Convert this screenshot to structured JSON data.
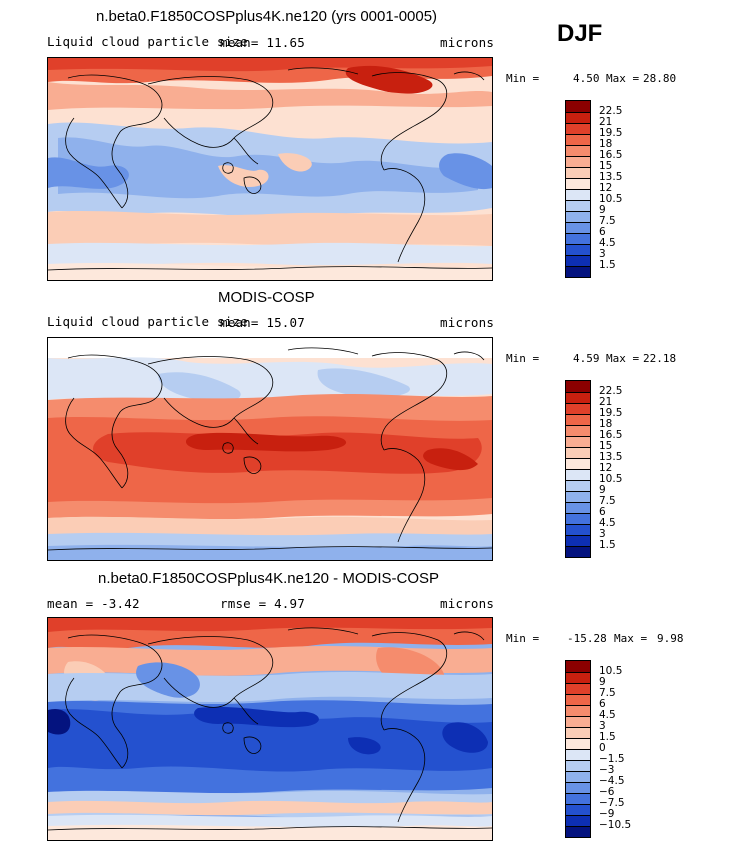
{
  "season": "DJF",
  "panels": [
    {
      "title": "n.beta0.F1850COSPplus4K.ne120 (yrs 0001-0005)",
      "variable": "Liquid cloud particle size",
      "stat": "mean=   11.65",
      "units": "microns",
      "min_label": "Min =",
      "min_value": "4.50",
      "max_label": "Max =",
      "max_value": "28.80",
      "colorbar_labels": [
        "22.5",
        "21",
        "19.5",
        "18",
        "16.5",
        "15",
        "13.5",
        "12",
        "10.5",
        "9",
        "7.5",
        "6",
        "4.5",
        "3",
        "1.5"
      ],
      "colors": [
        "#8b0000",
        "#c8200f",
        "#e0402a",
        "#ee6648",
        "#f58c6d",
        "#f9ad92",
        "#fbcdb6",
        "#fde8dc",
        "#dce6f6",
        "#b6cdf1",
        "#8fb1ec",
        "#6892e6",
        "#4372de",
        "#2451cf",
        "#0d2fb4",
        "#04137f"
      ]
    },
    {
      "title": "MODIS-COSP",
      "variable": "Liquid cloud particle size",
      "stat": "mean=   15.07",
      "units": "microns",
      "min_label": "Min =",
      "min_value": "4.59",
      "max_label": "Max =",
      "max_value": "22.18",
      "colorbar_labels": [
        "22.5",
        "21",
        "19.5",
        "18",
        "16.5",
        "15",
        "13.5",
        "12",
        "10.5",
        "9",
        "7.5",
        "6",
        "4.5",
        "3",
        "1.5"
      ],
      "colors": [
        "#8b0000",
        "#c8200f",
        "#e0402a",
        "#ee6648",
        "#f58c6d",
        "#f9ad92",
        "#fbcdb6",
        "#fde8dc",
        "#dce6f6",
        "#b6cdf1",
        "#8fb1ec",
        "#6892e6",
        "#4372de",
        "#2451cf",
        "#0d2fb4",
        "#04137f"
      ]
    },
    {
      "title": "n.beta0.F1850COSPplus4K.ne120 - MODIS-COSP",
      "variable": "mean =   -3.42",
      "stat": "rmse =    4.97",
      "units": "microns",
      "min_label": "Min =",
      "min_value": "-15.28",
      "max_label": "Max =",
      "max_value": "9.98",
      "colorbar_labels": [
        "10.5",
        "9",
        "7.5",
        "6",
        "4.5",
        "3",
        "1.5",
        "0",
        "−1.5",
        "−3",
        "−4.5",
        "−6",
        "−7.5",
        "−9",
        "−10.5"
      ],
      "colors": [
        "#8b0000",
        "#c8200f",
        "#e0402a",
        "#ee6648",
        "#f58c6d",
        "#f9ad92",
        "#fbcdb6",
        "#fde8dc",
        "#dce6f6",
        "#b6cdf1",
        "#8fb1ec",
        "#6892e6",
        "#4372de",
        "#2451cf",
        "#0d2fb4",
        "#04137f"
      ]
    }
  ]
}
